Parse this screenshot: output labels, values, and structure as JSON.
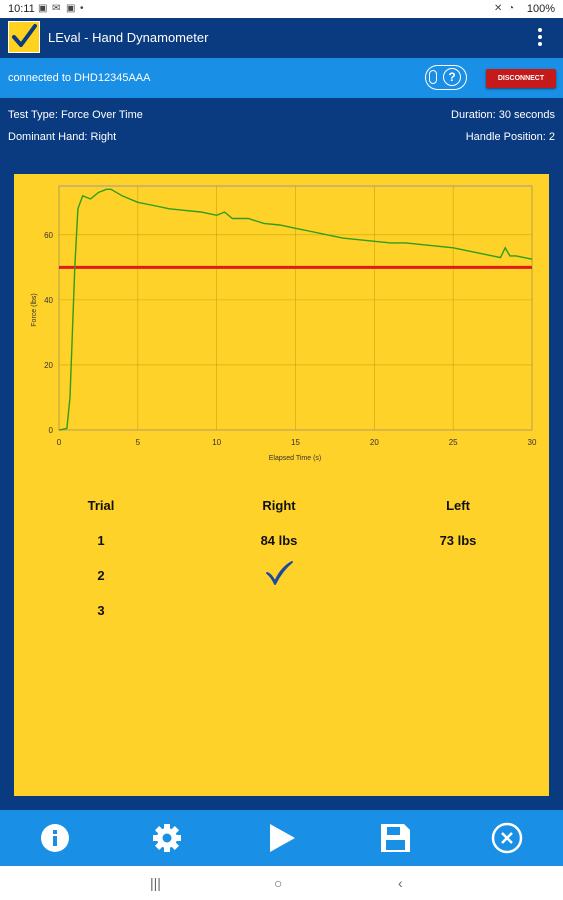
{
  "status_bar": {
    "time": "10:11",
    "battery": "100%",
    "icons": [
      "image-icon",
      "mail-icon",
      "photo-icon",
      "mute-icon",
      "wifi-icon",
      "battery-icon"
    ]
  },
  "app_bar": {
    "title": "LEval - Hand Dynamometer",
    "logo": "check-logo-icon",
    "menu": "overflow-menu-icon"
  },
  "connection": {
    "text": "connected to DHD12345AAA",
    "help_icon": "help-icon",
    "disconnect_label": "DISCONNECT"
  },
  "test_info": {
    "test_type": "Test Type: Force Over Time",
    "duration": "Duration: 30 seconds",
    "dominant_hand": "Dominant Hand: Right",
    "handle_position": "Handle Position: 2"
  },
  "chart_data": {
    "type": "line",
    "xlabel": "Elapsed Time (s)",
    "ylabel": "Force (lbs)",
    "xlim": [
      0,
      30
    ],
    "ylim": [
      0,
      75
    ],
    "x_ticks": [
      "0",
      "5",
      "10",
      "15",
      "20",
      "25",
      "30"
    ],
    "y_ticks": [
      "0",
      "20",
      "40",
      "60"
    ],
    "grid": true,
    "colors": {
      "series": "#2e9e1a",
      "threshold": "#e01b1b",
      "background": "#ffd22a"
    },
    "series": [
      {
        "x": [
          0,
          0.5,
          0.7,
          0.85,
          1.0,
          1.2,
          1.5,
          2.0,
          2.5,
          3.0,
          3.3,
          4.0,
          5.0,
          6.0,
          7.0,
          8.0,
          9.0,
          10.0,
          10.5,
          11.0,
          12.0,
          13.0,
          14.0,
          15.0,
          16.0,
          17.0,
          18.0,
          19.0,
          20.0,
          21.0,
          22.0,
          23.0,
          24.0,
          25.0,
          26.0,
          27.0,
          28.0,
          28.3,
          28.6,
          29.0,
          29.5,
          30.0
        ],
        "y": [
          0,
          0.5,
          10,
          30,
          50,
          68,
          72,
          71,
          73,
          74,
          74,
          72,
          70,
          69,
          68,
          67.5,
          67,
          66,
          67,
          65,
          65,
          63.5,
          63,
          62,
          61,
          60,
          59,
          58.5,
          58,
          57.5,
          57.5,
          57,
          56.5,
          56,
          55,
          54,
          53,
          56,
          53.5,
          53.5,
          53,
          52.5
        ]
      }
    ],
    "threshold": 50
  },
  "results": {
    "headers": [
      "Trial",
      "Right",
      "Left"
    ],
    "rows": [
      {
        "trial": "1",
        "right": "84 lbs",
        "left": "73 lbs",
        "right_check": false
      },
      {
        "trial": "2",
        "right": "",
        "left": "",
        "right_check": true
      },
      {
        "trial": "3",
        "right": "",
        "left": "",
        "right_check": false
      }
    ]
  },
  "bottom_nav": [
    "info-icon",
    "settings-icon",
    "play-icon",
    "save-icon",
    "close-circle-icon"
  ],
  "system_nav": [
    "recent-apps-icon",
    "home-icon",
    "back-icon"
  ]
}
